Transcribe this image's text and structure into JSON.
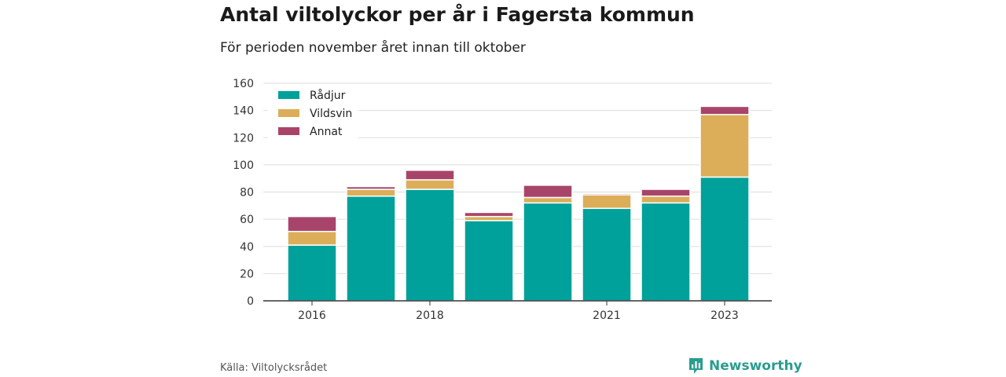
{
  "header": {
    "title": "Antal viltolyckor per år i Fagersta kommun",
    "subtitle": "För perioden november året innan till oktober"
  },
  "footer": {
    "source": "Källa: Viltolycksrådet",
    "brand": "Newsworthy",
    "brand_icon": "chart-logo-icon"
  },
  "chart_data": {
    "type": "bar",
    "stacked": true,
    "categories": [
      "2016",
      "2017",
      "2018",
      "2019",
      "2020",
      "2021",
      "2022",
      "2023"
    ],
    "x_tick_labels": [
      "2016",
      "2018",
      "2021",
      "2023"
    ],
    "series": [
      {
        "name": "Rådjur",
        "color": "#00a19a",
        "values": [
          41,
          77,
          82,
          59,
          72,
          68,
          72,
          91
        ]
      },
      {
        "name": "Vildsvin",
        "color": "#dcae5a",
        "values": [
          10,
          5,
          7,
          3,
          4,
          10,
          5,
          46
        ]
      },
      {
        "name": "Annat",
        "color": "#a8446a",
        "values": [
          11,
          2,
          7,
          3,
          9,
          1,
          5,
          6
        ]
      }
    ],
    "ylim": [
      0,
      160
    ],
    "yticks": [
      0,
      20,
      40,
      60,
      80,
      100,
      120,
      140,
      160
    ],
    "grid": true,
    "legend_position": "top-left"
  }
}
